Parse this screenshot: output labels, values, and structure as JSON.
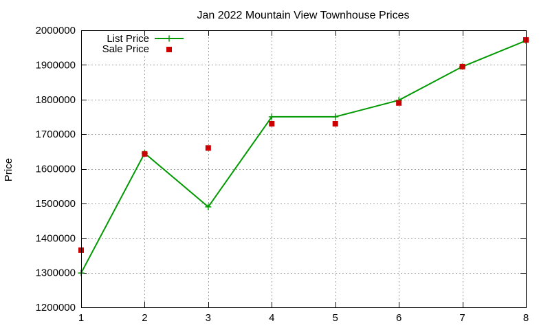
{
  "chart_data": {
    "type": "line",
    "title": "Jan 2022 Mountain View Townhouse Prices",
    "xlabel": "",
    "ylabel": "Price",
    "x": [
      1,
      2,
      3,
      4,
      5,
      6,
      7,
      8
    ],
    "xlim": [
      1,
      8
    ],
    "ylim": [
      1200000,
      2000000
    ],
    "xticks": [
      "1",
      "2",
      "3",
      "4",
      "5",
      "6",
      "7",
      "8"
    ],
    "yticks": [
      "1200000",
      "1300000",
      "1400000",
      "1500000",
      "1600000",
      "1700000",
      "1800000",
      "1900000",
      "2000000"
    ],
    "grid": true,
    "legend_position": "top-left",
    "series": [
      {
        "name": "List Price",
        "style": "line+cross",
        "color": "#009900",
        "values": [
          1299000,
          1645000,
          1490000,
          1750000,
          1750000,
          1798000,
          1895000,
          1970000
        ]
      },
      {
        "name": "Sale Price",
        "style": "square",
        "color": "#cc0000",
        "values": [
          1365000,
          1643000,
          1660000,
          1730000,
          1730000,
          1790000,
          1895000,
          1972000
        ]
      }
    ]
  }
}
